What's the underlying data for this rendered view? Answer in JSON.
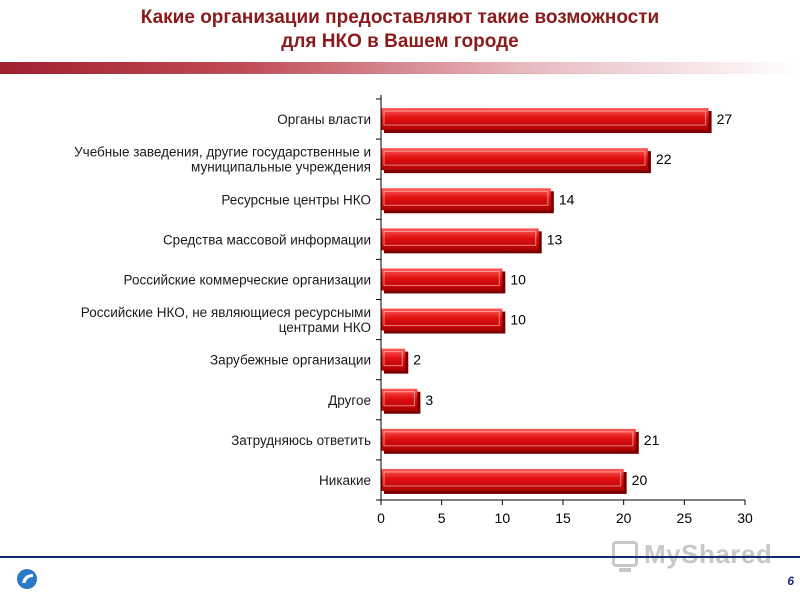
{
  "slide": {
    "title_line1": "Какие организации предоставляют такие возможности",
    "title_line2": "для НКО в Вашем городе",
    "page_number": "6",
    "watermark": "MyShared"
  },
  "colors": {
    "bar": "#e01010",
    "bar_shadow": "#7a0000",
    "title": "#8b1a1a",
    "footer": "#1a2a6e"
  },
  "chart_data": {
    "type": "bar",
    "orientation": "horizontal",
    "categories": [
      [
        "Органы власти"
      ],
      [
        "Учебные заведения, другие государственные и",
        "муниципальные учреждения"
      ],
      [
        "Ресурсные центры НКО"
      ],
      [
        "Средства массовой информации"
      ],
      [
        "Российские коммерческие организации"
      ],
      [
        "Российские НКО, не являющиеся ресурсными",
        "центрами НКО"
      ],
      [
        "Зарубежные организации"
      ],
      [
        "Другое"
      ],
      [
        "Затрудняюсь ответить"
      ],
      [
        "Никакие"
      ]
    ],
    "values": [
      27,
      22,
      14,
      13,
      10,
      10,
      2,
      3,
      21,
      20
    ],
    "data_labels": [
      "27",
      "22",
      "14",
      "13",
      "10",
      "10",
      "2",
      "3",
      "21",
      "20"
    ],
    "xlim": [
      0,
      30
    ],
    "ticks": [
      "0",
      "5",
      "10",
      "15",
      "20",
      "25",
      "30"
    ],
    "grid": false,
    "legend": "none"
  }
}
